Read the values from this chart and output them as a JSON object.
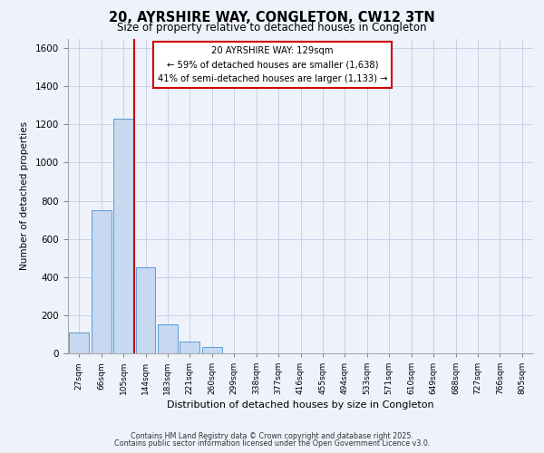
{
  "title": "20, AYRSHIRE WAY, CONGLETON, CW12 3TN",
  "subtitle": "Size of property relative to detached houses in Congleton",
  "xlabel": "Distribution of detached houses by size in Congleton",
  "ylabel": "Number of detached properties",
  "bar_labels": [
    "27sqm",
    "66sqm",
    "105sqm",
    "144sqm",
    "183sqm",
    "221sqm",
    "260sqm",
    "299sqm",
    "338sqm",
    "377sqm",
    "416sqm",
    "455sqm",
    "494sqm",
    "533sqm",
    "571sqm",
    "610sqm",
    "649sqm",
    "688sqm",
    "727sqm",
    "766sqm",
    "805sqm"
  ],
  "bar_values": [
    110,
    750,
    1230,
    450,
    150,
    60,
    33,
    0,
    0,
    0,
    0,
    0,
    0,
    0,
    0,
    0,
    0,
    0,
    0,
    0,
    0
  ],
  "bar_color": "#c6d9f0",
  "bar_edge_color": "#5b9bd5",
  "property_line_color": "#cc0000",
  "ylim": [
    0,
    1650
  ],
  "yticks": [
    0,
    200,
    400,
    600,
    800,
    1000,
    1200,
    1400,
    1600
  ],
  "annotation_title": "20 AYRSHIRE WAY: 129sqm",
  "annotation_line1": "← 59% of detached houses are smaller (1,638)",
  "annotation_line2": "41% of semi-detached houses are larger (1,133) →",
  "annotation_box_color": "#ffffff",
  "annotation_box_edge": "#cc0000",
  "footer_line1": "Contains HM Land Registry data © Crown copyright and database right 2025.",
  "footer_line2": "Contains public sector information licensed under the Open Government Licence v3.0.",
  "background_color": "#eef2fb",
  "plot_background": "#eef2fb",
  "grid_color": "#c8cfe8",
  "title_fontsize": 10.5,
  "subtitle_fontsize": 8.5
}
